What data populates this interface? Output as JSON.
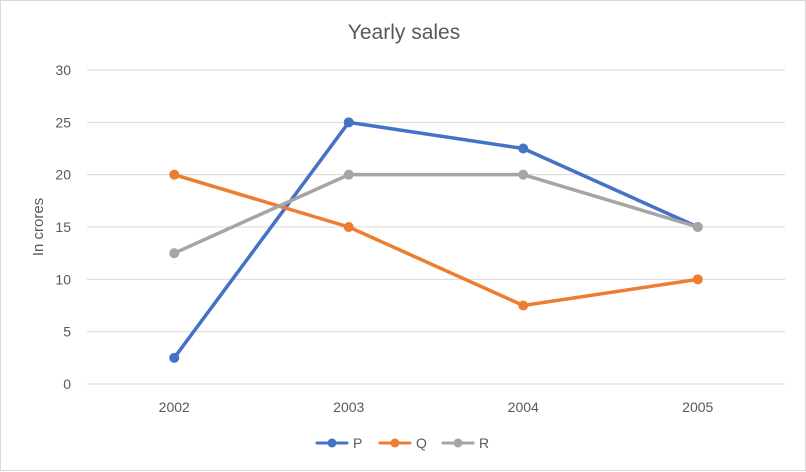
{
  "chart_data": {
    "type": "line",
    "title": "Yearly sales",
    "xlabel": "",
    "ylabel": "In crores",
    "categories": [
      "2002",
      "2003",
      "2004",
      "2005"
    ],
    "ylim": [
      0,
      30
    ],
    "yticks": [
      0,
      5,
      10,
      15,
      20,
      25,
      30
    ],
    "grid": true,
    "legend_position": "bottom",
    "series": [
      {
        "name": "P",
        "color": "#4472C4",
        "values": [
          2.5,
          25,
          22.5,
          15
        ]
      },
      {
        "name": "Q",
        "color": "#ED7D31",
        "values": [
          20,
          15,
          7.5,
          10
        ]
      },
      {
        "name": "R",
        "color": "#A5A5A5",
        "values": [
          12.5,
          20,
          20,
          15
        ]
      }
    ]
  }
}
